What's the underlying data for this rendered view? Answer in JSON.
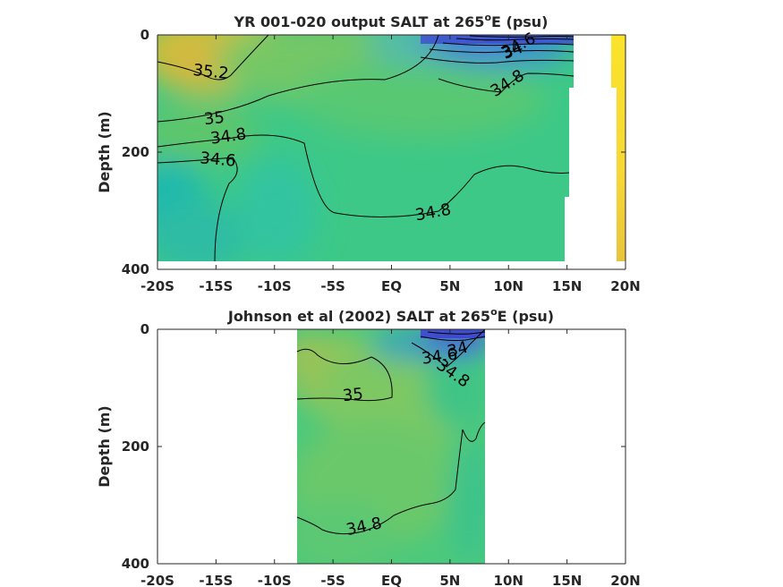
{
  "chart_data": [
    {
      "type": "heatmap",
      "title": "YR 001-020 output SALT at 265",
      "title_sup": "o",
      "title_tail": "E (psu)",
      "ylabel": "Depth (m)",
      "xlim": [
        -20,
        20
      ],
      "ylim": [
        0,
        400
      ],
      "x_ticks": [
        -20,
        -15,
        -10,
        -5,
        0,
        5,
        10,
        15,
        20
      ],
      "x_tick_labels": [
        "-20S",
        "-15S",
        "-10S",
        "-5S",
        "EQ",
        "5N",
        "10N",
        "15N",
        "20N"
      ],
      "y_ticks": [
        0,
        200,
        400
      ],
      "y_tick_labels": [
        "0",
        "200",
        "400"
      ],
      "contour_labels": [
        {
          "text": "35.2",
          "x": -13.8,
          "y": 62
        },
        {
          "text": "35",
          "x": -15,
          "y": 145
        },
        {
          "text": "34.8",
          "x": -13.6,
          "y": 172
        },
        {
          "text": "34.6",
          "x": -15,
          "y": 215
        },
        {
          "text": "34.8",
          "x": 1.7,
          "y": 305
        },
        {
          "text": "34.8",
          "x": 10,
          "y": 92
        },
        {
          "text": "34",
          "x": 10,
          "y": 20
        },
        {
          "text": "34.6",
          "x": 10,
          "y": 45
        }
      ],
      "contour_lines": [
        {
          "label": "35.2",
          "points": [
            [
              -20,
              48
            ],
            [
              -18,
              52
            ],
            [
              -16,
              56
            ],
            [
              -14,
              64
            ],
            [
              -12.5,
              58
            ],
            [
              -11,
              40
            ],
            [
              -9.5,
              22
            ],
            [
              -8.5,
              6
            ],
            [
              -8,
              0
            ]
          ]
        },
        {
          "label": "35",
          "points": [
            [
              -20,
              150
            ],
            [
              -17,
              148
            ],
            [
              -14,
              138
            ],
            [
              -12,
              128
            ],
            [
              -9,
              108
            ],
            [
              -6,
              92
            ],
            [
              -3,
              84
            ],
            [
              0,
              76
            ],
            [
              2,
              62
            ],
            [
              3.5,
              40
            ],
            [
              4,
              25
            ],
            [
              4.3,
              0
            ]
          ]
        },
        {
          "label": "34.8",
          "points": [
            [
              -20,
              190
            ],
            [
              -17,
              185
            ],
            [
              -15,
              182
            ],
            [
              -12,
              165
            ],
            [
              -9.5,
              155
            ],
            [
              -8,
              170
            ],
            [
              -7,
              220
            ],
            [
              -6,
              270
            ],
            [
              -4.5,
              305
            ],
            [
              -2,
              312
            ],
            [
              0,
              312
            ],
            [
              2,
              308
            ],
            [
              4,
              295
            ],
            [
              5.5,
              245
            ],
            [
              6.5,
              205
            ],
            [
              8,
              198
            ],
            [
              10,
              218
            ],
            [
              13,
              238
            ],
            [
              15,
              236
            ]
          ]
        },
        {
          "label": "34.6",
          "points": [
            [
              -20,
              218
            ],
            [
              -17,
              215
            ],
            [
              -16,
              213
            ],
            [
              -13,
              205
            ],
            [
              -12,
              218
            ],
            [
              -12.8,
              260
            ],
            [
              -13.2,
              310
            ],
            [
              -13.3,
              385
            ]
          ]
        },
        {
          "label": "34.8",
          "points": [
            [
              2,
              75
            ],
            [
              4,
              90
            ],
            [
              6,
              98
            ],
            [
              8,
              100
            ],
            [
              9.3,
              92
            ],
            [
              10.5,
              70
            ],
            [
              13,
              68
            ],
            [
              15.5,
              72
            ]
          ]
        }
      ],
      "model_colorbar_strip": {
        "x_range": [
          18.8,
          20
        ],
        "value_range": "35.2-35.6"
      }
    },
    {
      "type": "heatmap",
      "title": "Johnson et al (2002) SALT at 265",
      "title_sup": "o",
      "title_tail": "E (psu)",
      "ylabel": "Depth (m)",
      "xlim": [
        -20,
        20
      ],
      "ylim": [
        0,
        400
      ],
      "data_x_range": [
        -8,
        8
      ],
      "x_ticks": [
        -20,
        -15,
        -10,
        -5,
        0,
        5,
        10,
        15,
        20
      ],
      "x_tick_labels": [
        "-20S",
        "-15S",
        "-10S",
        "-5S",
        "EQ",
        "5N",
        "10N",
        "15N",
        "20N"
      ],
      "y_ticks": [
        0,
        200,
        400
      ],
      "y_tick_labels": [
        "0",
        "200",
        "400"
      ],
      "contour_labels": [
        {
          "text": "35",
          "x": -3,
          "y": 110
        },
        {
          "text": "34",
          "x": 5.5,
          "y": 35
        },
        {
          "text": "34.6",
          "x": 4.2,
          "y": 50
        },
        {
          "text": "34.8",
          "x": 5,
          "y": 80
        },
        {
          "text": "34.8",
          "x": -2.2,
          "y": 330
        }
      ],
      "contour_lines": [
        {
          "label": "35",
          "points": [
            [
              -8,
              35
            ],
            [
              -6.5,
              32
            ],
            [
              -5,
              40
            ],
            [
              -3.5,
              55
            ],
            [
              -2,
              65
            ],
            [
              -0.3,
              85
            ],
            [
              -0.5,
              112
            ],
            [
              -2,
              118
            ],
            [
              -4.5,
              115
            ],
            [
              -6,
              110
            ],
            [
              -8,
              108
            ]
          ]
        },
        {
          "label": "34.8",
          "points": [
            [
              -8,
              310
            ],
            [
              -7,
              318
            ],
            [
              -6,
              322
            ],
            [
              -4.8,
              330
            ],
            [
              0,
              322
            ],
            [
              1,
              310
            ],
            [
              3,
              298
            ],
            [
              4.5,
              292
            ],
            [
              5.8,
              270
            ],
            [
              6,
              240
            ],
            [
              6.2,
              180
            ],
            [
              7,
              205
            ],
            [
              7.5,
              185
            ],
            [
              8,
              162
            ]
          ]
        },
        {
          "label": "34.8",
          "points": [
            [
              2.5,
              42
            ],
            [
              4,
              55
            ],
            [
              6,
              78
            ],
            [
              7.3,
              58
            ],
            [
              8,
              30
            ]
          ]
        }
      ]
    }
  ]
}
